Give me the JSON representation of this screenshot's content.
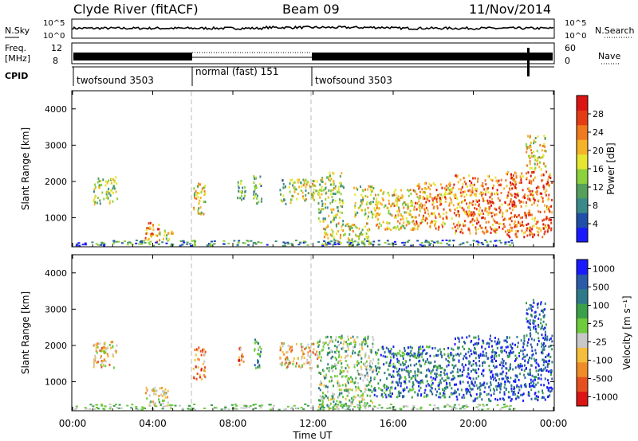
{
  "header": {
    "station": "Clyde River (fitACF)",
    "beam": "Beam 09",
    "date": "11/Nov/2014"
  },
  "panels": {
    "nsky_label": "N.Sky",
    "nsearch_label": "N.Search",
    "nsky_ticks": [
      "10^5",
      "10^0"
    ],
    "nsearch_ticks": [
      "10^5",
      "10^0"
    ],
    "freq_label": "Freq.",
    "freq_unit": "[MHz]",
    "freq_ticks": [
      "12",
      "8"
    ],
    "nave_label": "Nave",
    "nave_ticks": [
      "60",
      "0"
    ],
    "cpid_label": "CPID",
    "cpid_segments": [
      {
        "start_h": 0,
        "end_h": 6,
        "label": "twofsound 3503"
      },
      {
        "start_h": 6,
        "end_h": 12,
        "label": "normal (fast) 151"
      },
      {
        "start_h": 12,
        "end_h": 24,
        "label": "twofsound 3503"
      }
    ]
  },
  "chart_data": [
    {
      "type": "heatmap",
      "name": "power",
      "ylabel": "Slant Range [km]",
      "y_ticks": [
        "1000",
        "2000",
        "3000",
        "4000"
      ],
      "ylim": [
        200,
        4500
      ],
      "colorbar_label": "Power [dB]",
      "colorbar_ticks": [
        "4",
        "8",
        "12",
        "16",
        "20",
        "24",
        "28"
      ],
      "colors": [
        "#1a1aff",
        "#1f4fa8",
        "#3b8a8a",
        "#55a05a",
        "#8cd23c",
        "#e6e630",
        "#f5b428",
        "#f07a1e",
        "#e63c14",
        "#dc1414"
      ],
      "clusters": [
        {
          "t": [
            1.0,
            2.2
          ],
          "r": [
            1400,
            2150
          ],
          "level": 0.45
        },
        {
          "t": [
            3.6,
            4.3
          ],
          "r": [
            350,
            900
          ],
          "level": 0.75
        },
        {
          "t": [
            4.3,
            5.0
          ],
          "r": [
            400,
            700
          ],
          "level": 0.55
        },
        {
          "t": [
            6.0,
            6.6
          ],
          "r": [
            1100,
            2000
          ],
          "level": 0.55
        },
        {
          "t": [
            8.2,
            8.6
          ],
          "r": [
            1500,
            2100
          ],
          "level": 0.35
        },
        {
          "t": [
            9.0,
            9.4
          ],
          "r": [
            1400,
            2200
          ],
          "level": 0.35
        },
        {
          "t": [
            10.3,
            11.0
          ],
          "r": [
            1400,
            2100
          ],
          "level": 0.4
        },
        {
          "t": [
            11.0,
            12.2
          ],
          "r": [
            1500,
            2100
          ],
          "level": 0.5
        },
        {
          "t": [
            12.2,
            13.5
          ],
          "r": [
            900,
            2300
          ],
          "level": 0.45
        },
        {
          "t": [
            12.5,
            14.8
          ],
          "r": [
            250,
            900
          ],
          "level": 0.55
        },
        {
          "t": [
            14.0,
            15.0
          ],
          "r": [
            1000,
            1900
          ],
          "level": 0.5
        },
        {
          "t": [
            15.0,
            17.0
          ],
          "r": [
            700,
            1800
          ],
          "level": 0.6
        },
        {
          "t": [
            17.0,
            19.0
          ],
          "r": [
            700,
            2000
          ],
          "level": 0.7
        },
        {
          "t": [
            19.0,
            21.5
          ],
          "r": [
            600,
            2200
          ],
          "level": 0.75
        },
        {
          "t": [
            21.5,
            23.9
          ],
          "r": [
            500,
            2300
          ],
          "level": 0.8
        },
        {
          "t": [
            22.6,
            23.6
          ],
          "r": [
            2300,
            3300
          ],
          "level": 0.55
        }
      ]
    },
    {
      "type": "heatmap",
      "name": "velocity",
      "ylabel": "Slant Range [km]",
      "y_ticks": [
        "1000",
        "2000",
        "3000",
        "4000"
      ],
      "ylim": [
        200,
        4500
      ],
      "colorbar_label": "Velocity [m s⁻¹]",
      "colorbar_ticks": [
        "1000",
        "500",
        "100",
        "25",
        "-25",
        "-100",
        "-500",
        "-1000"
      ],
      "colors": [
        "#dc1414",
        "#e6501e",
        "#f08c28",
        "#f5be3c",
        "#c8c8c8",
        "#6ecc3c",
        "#3ba04a",
        "#2f7a8a",
        "#2a5aa8",
        "#1a1aff"
      ],
      "clusters": [
        {
          "t": [
            1.0,
            2.2
          ],
          "r": [
            1400,
            2150
          ],
          "level": 0.35
        },
        {
          "t": [
            3.6,
            4.8
          ],
          "r": [
            350,
            900
          ],
          "level": 0.45
        },
        {
          "t": [
            6.0,
            6.6
          ],
          "r": [
            1100,
            2000
          ],
          "level": 0.25
        },
        {
          "t": [
            8.2,
            8.6
          ],
          "r": [
            1500,
            2100
          ],
          "level": 0.2
        },
        {
          "t": [
            9.0,
            9.4
          ],
          "r": [
            1400,
            2200
          ],
          "level": 0.7
        },
        {
          "t": [
            10.3,
            12.2
          ],
          "r": [
            1400,
            2100
          ],
          "level": 0.35
        },
        {
          "t": [
            12.2,
            15.0
          ],
          "r": [
            250,
            2300
          ],
          "level": 0.55
        },
        {
          "t": [
            15.0,
            19.0
          ],
          "r": [
            600,
            2000
          ],
          "level": 0.75
        },
        {
          "t": [
            19.0,
            23.9
          ],
          "r": [
            500,
            2300
          ],
          "level": 0.85
        },
        {
          "t": [
            22.6,
            23.6
          ],
          "r": [
            2300,
            3300
          ],
          "level": 0.85
        }
      ]
    }
  ],
  "x_axis": {
    "label": "Time UT",
    "ticks": [
      "00:00",
      "04:00",
      "08:00",
      "12:00",
      "16:00",
      "20:00",
      "00:00"
    ]
  }
}
